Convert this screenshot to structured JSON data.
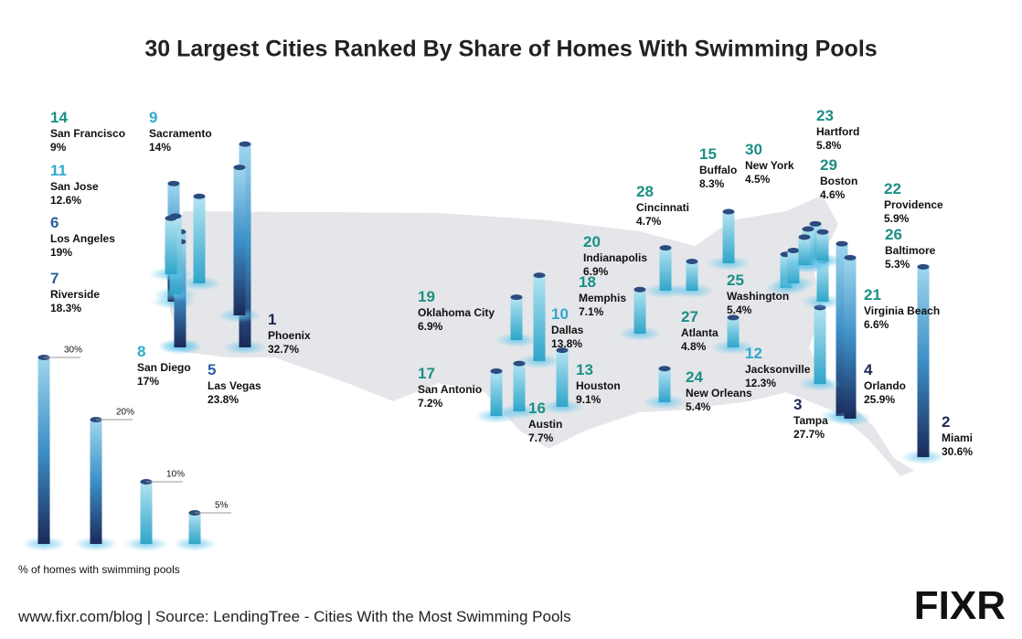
{
  "chart_data": {
    "type": "map",
    "title": "30 Largest Cities Ranked By Share of Homes With Swimming Pools",
    "ranks": [
      1,
      2,
      3,
      4,
      5,
      6,
      7,
      8,
      9,
      10,
      11,
      12,
      13,
      14,
      15,
      16,
      17,
      18,
      19,
      20,
      21,
      22,
      23,
      24,
      25,
      26,
      27,
      28,
      29,
      30
    ],
    "categories": [
      "Phoenix",
      "Miami",
      "Tampa",
      "Orlando",
      "Las Vegas",
      "Los Angeles",
      "Riverside",
      "San Diego",
      "Sacramento",
      "Dallas",
      "San Jose",
      "Jacksonville",
      "Houston",
      "San Francisco",
      "Buffalo",
      "Austin",
      "San Antonio",
      "Memphis",
      "Oklahoma City",
      "Indianapolis",
      "Virginia Beach",
      "Providence",
      "Hartford",
      "New Orleans",
      "Washington",
      "Baltimore",
      "Atlanta",
      "Cincinnati",
      "Boston",
      "New York"
    ],
    "values": [
      32.7,
      30.6,
      27.7,
      25.9,
      23.8,
      19,
      18.3,
      17,
      14,
      13.8,
      12.6,
      12.3,
      9.1,
      9,
      8.3,
      7.7,
      7.2,
      7.1,
      6.9,
      6.9,
      6.6,
      5.9,
      5.8,
      5.4,
      5.4,
      5.3,
      4.8,
      4.7,
      4.6,
      4.5
    ],
    "value_labels": [
      "32.7%",
      "30.6%",
      "27.7%",
      "25.9%",
      "23.8%",
      "19%",
      "18.3%",
      "17%",
      "14%",
      "13.8%",
      "12.6%",
      "12.3%",
      "9.1%",
      "9%",
      "8.3%",
      "7.7%",
      "7.2%",
      "7.1%",
      "6.9%",
      "6.9%",
      "6.6%",
      "5.9%",
      "5.8%",
      "5.4%",
      "5.4%",
      "5.3%",
      "4.8%",
      "4.7%",
      "4.6%",
      "4.5%"
    ],
    "legend_title": "% of homes with swimming pools",
    "legend_ticks": [
      {
        "value": 30,
        "label": "30%"
      },
      {
        "value": 20,
        "label": "20%"
      },
      {
        "value": 10,
        "label": "10%"
      },
      {
        "value": 5,
        "label": "5%"
      }
    ],
    "footer": "www.fixr.com/blog | Source: LendingTree - Cities With the Most Swimming Pools",
    "logo": "FIXR"
  }
}
